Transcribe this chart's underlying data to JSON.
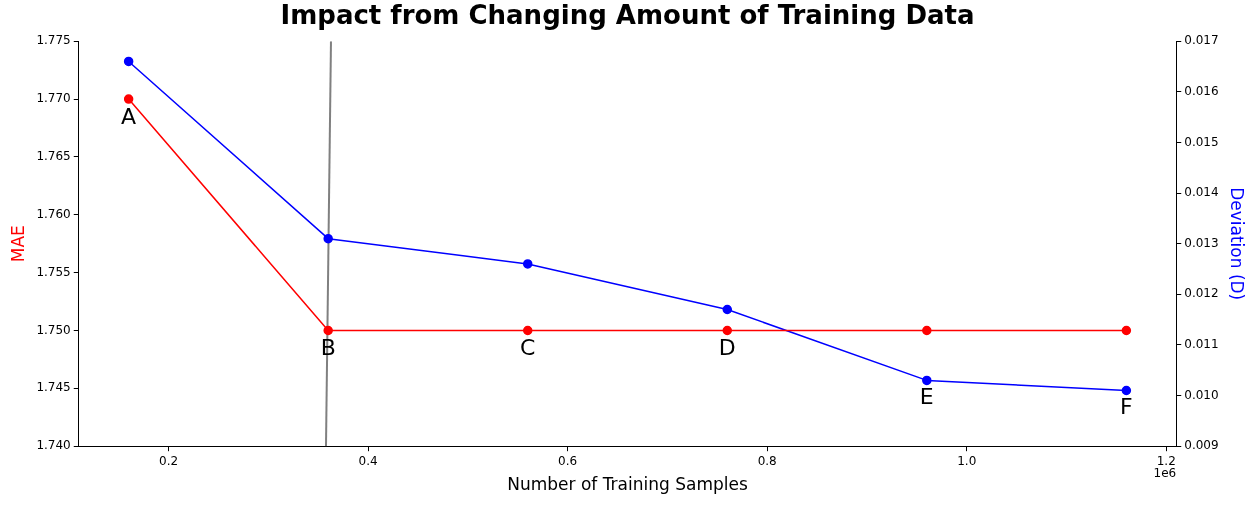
{
  "chart_data": {
    "type": "line",
    "title": "Impact from Changing Amount of Training Data",
    "xlabel": "Number of Training Samples",
    "ylabel": "MAE",
    "y2label": "Deviation (D)",
    "x": [
      0.16,
      0.36,
      0.56,
      0.76,
      0.96,
      1.16
    ],
    "series": [
      {
        "color": "#ff0000",
        "values": [
          1.77,
          1.75,
          1.75,
          1.75,
          1.75,
          1.75
        ]
      },
      {
        "color": "#0000ff",
        "axis": "y2",
        "values": [
          0.0166,
          0.0131,
          0.0126,
          0.0117,
          0.0103,
          0.0101
        ]
      },
      {
        "color": "#808080",
        "marker": "none",
        "x": [
          0.3628,
          0.3578
        ],
        "values": [
          1.775,
          1.74
        ]
      }
    ],
    "marker": "circle",
    "grid": false,
    "legend": false,
    "xlim": [
      0.11,
      1.21
    ],
    "xticks": [
      0.2,
      0.4,
      0.6,
      0.8,
      {
        "value": 1.0,
        "label": "1.0"
      },
      1.2
    ],
    "ylim": [
      1.74,
      1.775
    ],
    "yticks": [
      {
        "value": 1.74,
        "label": "1.740"
      },
      {
        "value": 1.745,
        "label": "1.745"
      },
      {
        "value": 1.75,
        "label": "1.750"
      },
      {
        "value": 1.755,
        "label": "1.755"
      },
      {
        "value": 1.76,
        "label": "1.760"
      },
      {
        "value": 1.765,
        "label": "1.765"
      },
      {
        "value": 1.77,
        "label": "1.770"
      },
      {
        "value": 1.775,
        "label": "1.775"
      }
    ],
    "y2lim": [
      0.009,
      0.017
    ],
    "y2ticks": [
      {
        "value": 0.009,
        "label": "0.009"
      },
      {
        "value": 0.01,
        "label": "0.010"
      },
      {
        "value": 0.011,
        "label": "0.011"
      },
      {
        "value": 0.012,
        "label": "0.012"
      },
      {
        "value": 0.013,
        "label": "0.013"
      },
      {
        "value": 0.014,
        "label": "0.014"
      },
      {
        "value": 0.015,
        "label": "0.015"
      },
      {
        "value": 0.016,
        "label": "0.016"
      },
      {
        "value": 0.017,
        "label": "0.017"
      }
    ],
    "annotations": [
      {
        "text": "A",
        "x": 0.16,
        "y": 1.77
      },
      {
        "text": "B",
        "x": 0.36,
        "y": 1.75
      },
      {
        "text": "C",
        "x": 0.56,
        "y": 1.75
      },
      {
        "text": "D",
        "x": 0.76,
        "y": 1.75
      },
      {
        "text": "E",
        "x": 0.96,
        "y": 1.7458
      },
      {
        "text": "F",
        "x": 1.16,
        "y": 1.7449
      },
      "1e6"
    ]
  }
}
